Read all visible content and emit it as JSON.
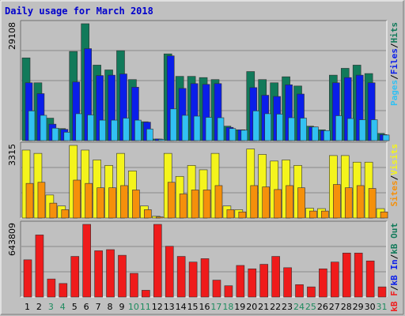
{
  "chart_data": {
    "type": "bar",
    "title": "Daily usage for March 2018",
    "categories": [
      "1",
      "2",
      "3",
      "4",
      "5",
      "6",
      "7",
      "8",
      "9",
      "10",
      "11",
      "12",
      "13",
      "14",
      "15",
      "16",
      "17",
      "18",
      "19",
      "20",
      "21",
      "22",
      "23",
      "24",
      "25",
      "26",
      "27",
      "28",
      "29",
      "30",
      "31"
    ],
    "weekend_days": [
      "3",
      "4",
      "10",
      "11",
      "17",
      "18",
      "24",
      "25",
      "31"
    ],
    "panels": [
      {
        "id": "hits",
        "max_label": "29108",
        "ylim": [
          0,
          29108
        ],
        "right_label": [
          "Pages",
          "Files",
          "Hits"
        ],
        "series": [
          {
            "name": "Hits",
            "color": "#117a5a",
            "values": [
              20600,
              14400,
              5600,
              3000,
              22200,
              29108,
              18800,
              17600,
              22400,
              15200,
              4700,
              400,
              21600,
              16000,
              16000,
              15700,
              15200,
              3600,
              2700,
              17200,
              15200,
              14400,
              15900,
              13600,
              3600,
              2700,
              16300,
              18000,
              18800,
              16700,
              1800
            ]
          },
          {
            "name": "Files",
            "color": "#0a1eea",
            "values": [
              14400,
              11700,
              4100,
              2800,
              14600,
              22900,
              16200,
              16300,
              16600,
              13300,
              4600,
              400,
              21100,
              13000,
              14200,
              14000,
              14200,
              3300,
              2700,
              13200,
              11300,
              11000,
              13900,
              11600,
              3400,
              2500,
              14400,
              15700,
              16300,
              14400,
              1500
            ]
          },
          {
            "name": "Pages",
            "color": "#32c1f2",
            "values": [
              7400,
              6300,
              3100,
              2100,
              6700,
              6400,
              5100,
              5100,
              5600,
              5100,
              2900,
              300,
              7900,
              6300,
              6100,
              5800,
              5700,
              3000,
              2600,
              7400,
              6700,
              6600,
              5700,
              5600,
              3400,
              2500,
              6200,
              5500,
              5200,
              5200,
              1400
            ]
          }
        ]
      },
      {
        "id": "visits",
        "max_label": "3315",
        "ylim": [
          0,
          3315
        ],
        "right_label": [
          "Sites",
          "Visits"
        ],
        "series": [
          {
            "name": "Visits",
            "color": "#f4f41c",
            "values": [
              3100,
              2950,
              1050,
              550,
              3315,
              3100,
              2650,
              2400,
              2950,
              2150,
              550,
              80,
              2950,
              1900,
              2400,
              2200,
              2950,
              550,
              380,
              3150,
              2900,
              2600,
              2650,
              2400,
              450,
              430,
              2850,
              2850,
              2550,
              2550,
              430
            ]
          },
          {
            "name": "Sites",
            "color": "#f5900b",
            "values": [
              1580,
              1630,
              680,
              380,
              1730,
              1580,
              1380,
              1380,
              1480,
              1280,
              380,
              50,
              1630,
              1100,
              1280,
              1280,
              1480,
              380,
              280,
              1480,
              1420,
              1300,
              1480,
              1380,
              320,
              320,
              1530,
              1380,
              1480,
              1350,
              280
            ]
          }
        ]
      },
      {
        "id": "kbytes",
        "max_label": "643809",
        "ylim": [
          0,
          643809
        ],
        "right_label": [
          "kB F",
          "kB In",
          "kB Out"
        ],
        "series": [
          {
            "name": "kB F",
            "color": "#ef1b1b",
            "values": [
              330000,
              550000,
              160000,
              120000,
              360000,
              643809,
              410000,
              420000,
              370000,
              210000,
              60000,
              643809,
              450000,
              360000,
              310000,
              340000,
              150000,
              100000,
              280000,
              250000,
              290000,
              360000,
              260000,
              110000,
              90000,
              250000,
              310000,
              390000,
              390000,
              320000,
              90000
            ]
          }
        ]
      }
    ]
  }
}
